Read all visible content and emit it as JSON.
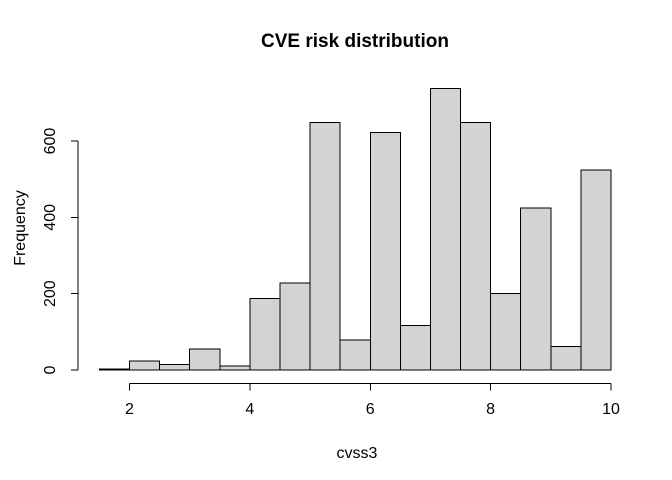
{
  "figure": {
    "background": "#ffffff"
  },
  "chart_data": {
    "type": "bar",
    "subtype": "histogram",
    "title": "CVE risk distribution",
    "xlabel": "cvss3",
    "ylabel": "Frequency",
    "bin_edges": [
      1.5,
      2.0,
      2.5,
      3.0,
      3.5,
      4.0,
      4.5,
      5.0,
      5.5,
      6.0,
      6.5,
      7.0,
      7.5,
      8.0,
      8.5,
      9.0,
      9.5,
      10.0
    ],
    "counts": [
      2,
      24,
      14,
      55,
      11,
      188,
      228,
      648,
      78,
      622,
      116,
      738,
      648,
      201,
      424,
      61,
      524
    ],
    "x_ticks": [
      2,
      4,
      6,
      8,
      10
    ],
    "y_ticks": [
      0,
      200,
      400,
      600
    ],
    "xlim": [
      1.5,
      10
    ],
    "ylim": [
      0,
      740
    ],
    "grid": false,
    "legend": "none",
    "bar_fill": "#d3d3d3",
    "bar_stroke": "#000000",
    "axis_color": "#000000",
    "background": "#ffffff"
  }
}
